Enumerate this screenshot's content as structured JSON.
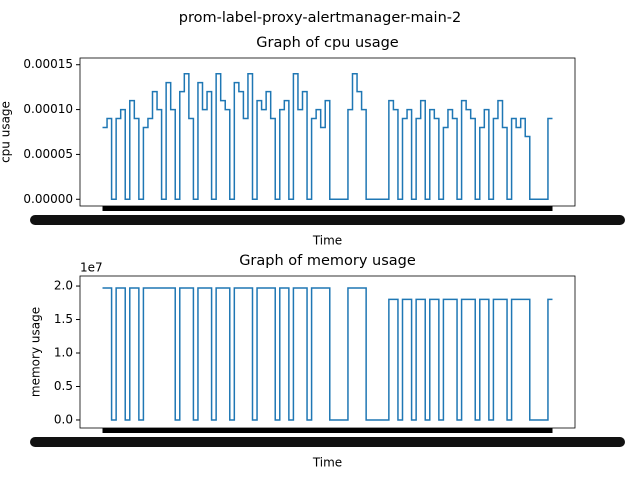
{
  "title": "prom-label-proxy-alertmanager-main-2",
  "chart_data": [
    {
      "type": "line",
      "title": "Graph of cpu usage",
      "x_label": "Time",
      "y_label": "cpu usage",
      "x": [
        0,
        1,
        2,
        3,
        4,
        5,
        6,
        7,
        8,
        9,
        10,
        11,
        12,
        13,
        14,
        15,
        16,
        17,
        18,
        19,
        20,
        21,
        22,
        23,
        24,
        25,
        26,
        27,
        28,
        29,
        30,
        31,
        32,
        33,
        34,
        35,
        36,
        37,
        38,
        39,
        40,
        41,
        42,
        43,
        44,
        45,
        46,
        47,
        48,
        49,
        50,
        51,
        52,
        53,
        54,
        55,
        56,
        57,
        58,
        59,
        60,
        61,
        62,
        63,
        64,
        65,
        66,
        67,
        68,
        69,
        70,
        71,
        72,
        73,
        74,
        75,
        76,
        77,
        78,
        79,
        80,
        81,
        82,
        83,
        84,
        85,
        86,
        87,
        88,
        89,
        90,
        91,
        92,
        93,
        94,
        95,
        96,
        97,
        98,
        99
      ],
      "xlim": [
        -4.95,
        103.95
      ],
      "series": [
        {
          "name": "cpu usage",
          "color": "#1f77b4",
          "values": [
            8e-05,
            9e-05,
            0,
            9e-05,
            0.0001,
            0,
            0.00011,
            9e-05,
            0,
            8e-05,
            9e-05,
            0.00012,
            0.0001,
            0,
            0.00013,
            0.0001,
            0,
            0.00012,
            0.00014,
            9e-05,
            0,
            0.00013,
            0.0001,
            0.00012,
            0,
            0.00014,
            0.00011,
            0.0001,
            0,
            0.00013,
            0.00012,
            9e-05,
            0.00014,
            0,
            0.00011,
            0.0001,
            0.00012,
            9e-05,
            0,
            0.0001,
            0.00011,
            0,
            0.00014,
            0.0001,
            0.00012,
            0,
            9e-05,
            0.0001,
            8e-05,
            0.00011,
            0,
            0,
            0,
            0,
            0.0001,
            0.00014,
            0.00012,
            0.0001,
            0,
            0,
            0,
            0,
            0,
            0.00011,
            0.0001,
            0,
            9e-05,
            0.0001,
            0,
            9e-05,
            0.00011,
            0,
            0.0001,
            9e-05,
            0,
            8e-05,
            0.0001,
            9e-05,
            0,
            0.00011,
            0.0001,
            9e-05,
            0,
            8e-05,
            0.0001,
            0,
            9e-05,
            0.00011,
            8e-05,
            0,
            9e-05,
            8e-05,
            9e-05,
            7e-05,
            0,
            0,
            0,
            0,
            9e-05,
            9e-05
          ]
        }
      ],
      "ylim": [
        -7.5e-06,
        0.0001575
      ],
      "yticks": [
        {
          "value": 0,
          "label": "0.00000"
        },
        {
          "value": 5e-05,
          "label": "0.00005"
        },
        {
          "value": 0.0001,
          "label": "0.00010"
        },
        {
          "value": 0.00015,
          "label": "0.00015"
        }
      ]
    },
    {
      "type": "line",
      "title": "Graph of memory usage",
      "x_label": "Time",
      "y_label": "memory usage",
      "y_offset_label": "1e7",
      "x": [
        0,
        1,
        2,
        3,
        4,
        5,
        6,
        7,
        8,
        9,
        10,
        11,
        12,
        13,
        14,
        15,
        16,
        17,
        18,
        19,
        20,
        21,
        22,
        23,
        24,
        25,
        26,
        27,
        28,
        29,
        30,
        31,
        32,
        33,
        34,
        35,
        36,
        37,
        38,
        39,
        40,
        41,
        42,
        43,
        44,
        45,
        46,
        47,
        48,
        49,
        50,
        51,
        52,
        53,
        54,
        55,
        56,
        57,
        58,
        59,
        60,
        61,
        62,
        63,
        64,
        65,
        66,
        67,
        68,
        69,
        70,
        71,
        72,
        73,
        74,
        75,
        76,
        77,
        78,
        79,
        80,
        81,
        82,
        83,
        84,
        85,
        86,
        87,
        88,
        89,
        90,
        91,
        92,
        93,
        94,
        95,
        96,
        97,
        98,
        99
      ],
      "xlim": [
        -4.95,
        103.95
      ],
      "series": [
        {
          "name": "memory usage",
          "color": "#1f77b4",
          "values": [
            19700000,
            19700000,
            0,
            19700000,
            19700000,
            0,
            19700000,
            19700000,
            0,
            19700000,
            19700000,
            19700000,
            19700000,
            19700000,
            19700000,
            19700000,
            0,
            19700000,
            19700000,
            19700000,
            0,
            19700000,
            19700000,
            19700000,
            0,
            19700000,
            19700000,
            19700000,
            0,
            19700000,
            19700000,
            19700000,
            19700000,
            0,
            19700000,
            19700000,
            19700000,
            19700000,
            0,
            19700000,
            19700000,
            0,
            19700000,
            19700000,
            19700000,
            0,
            19700000,
            19700000,
            19700000,
            19700000,
            0,
            0,
            0,
            0,
            19700000,
            19700000,
            19700000,
            19700000,
            0,
            0,
            0,
            0,
            0,
            18000000,
            18000000,
            0,
            18000000,
            18000000,
            0,
            18000000,
            18000000,
            0,
            18000000,
            18000000,
            0,
            18000000,
            18000000,
            18000000,
            0,
            18000000,
            18000000,
            18000000,
            0,
            18000000,
            18000000,
            0,
            18000000,
            18000000,
            18000000,
            0,
            18000000,
            18000000,
            18000000,
            18000000,
            0,
            0,
            0,
            0,
            18000000,
            18000000
          ]
        }
      ],
      "ylim": [
        -1200000,
        21500000
      ],
      "yticks": [
        {
          "value": 0,
          "label": "0.0"
        },
        {
          "value": 5000000,
          "label": "0.5"
        },
        {
          "value": 10000000,
          "label": "1.0"
        },
        {
          "value": 15000000,
          "label": "1.5"
        },
        {
          "value": 20000000,
          "label": "2.0"
        }
      ]
    }
  ]
}
